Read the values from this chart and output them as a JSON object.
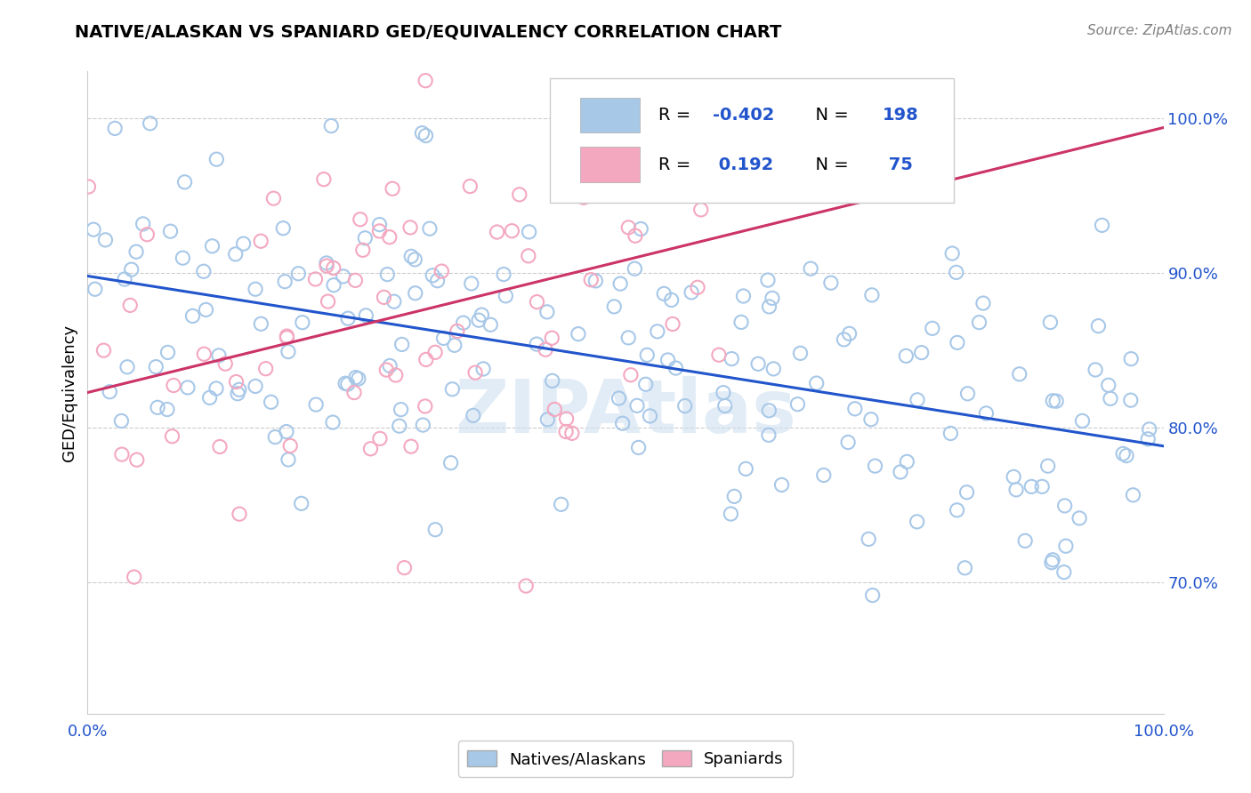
{
  "title": "NATIVE/ALASKAN VS SPANIARD GED/EQUIVALENCY CORRELATION CHART",
  "source": "Source: ZipAtlas.com",
  "ylabel": "GED/Equivalency",
  "xlim": [
    0.0,
    1.0
  ],
  "ylim": [
    0.615,
    1.03
  ],
  "yticks": [
    0.7,
    0.8,
    0.9,
    1.0
  ],
  "ytick_labels": [
    "70.0%",
    "80.0%",
    "90.0%",
    "100.0%"
  ],
  "xtick_labels": [
    "0.0%",
    "100.0%"
  ],
  "blue_color": "#a8c8e8",
  "pink_color": "#f4a8c0",
  "blue_line_color": "#2255cc",
  "pink_line_color": "#cc3366",
  "R_blue": -0.402,
  "N_blue": 198,
  "R_pink": 0.192,
  "N_pink": 75,
  "legend_label_blue": "Natives/Alaskans",
  "legend_label_pink": "Spaniards",
  "legend_R_color": "#2255cc",
  "legend_N_color": "#2255cc",
  "grid_color": "#cccccc",
  "background_color": "#ffffff",
  "watermark": "ZIPAtlas",
  "seed_blue": 42,
  "seed_pink": 7
}
